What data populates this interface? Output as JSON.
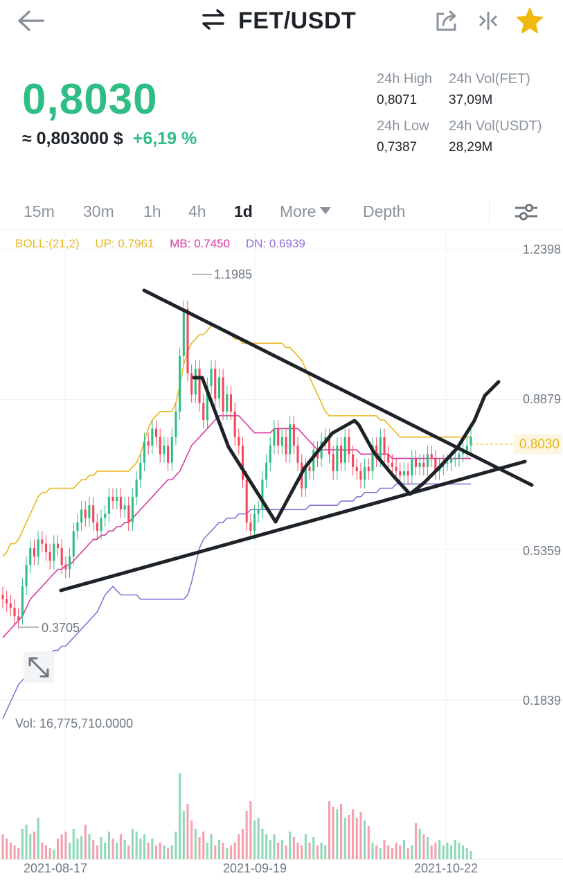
{
  "header": {
    "pair": "FET/USDT",
    "icons": [
      "back-arrow-icon",
      "swap-arrows-icon",
      "share-icon",
      "compare-icon",
      "star-icon"
    ]
  },
  "price": {
    "last": "0,8030",
    "usd_approx": "≈ 0,803000 $",
    "change_pct": "+6,19 %"
  },
  "stats": {
    "high_label": "24h High",
    "high_value": "0,8071",
    "vol_base_label": "24h Vol(FET)",
    "vol_base_value": "37,09M",
    "low_label": "24h Low",
    "low_value": "0,7387",
    "vol_quote_label": "24h Vol(USDT)",
    "vol_quote_value": "28,29M"
  },
  "tabs": [
    {
      "label": "15m"
    },
    {
      "label": "30m"
    },
    {
      "label": "1h"
    },
    {
      "label": "4h"
    },
    {
      "label": "1d",
      "active": true
    },
    {
      "label": "More"
    },
    {
      "label": "Depth"
    }
  ],
  "indicator": {
    "name": "BOLL:(21,2)",
    "up": "UP: 0.7961",
    "mb": "MB: 0.7450",
    "dn": "DN: 0.6939"
  },
  "colors": {
    "up": "#2ebd85",
    "down": "#f6465d",
    "boll_up": "#e7b61e",
    "boll_mb": "#d6399f",
    "boll_dn": "#8e6fd4",
    "drawing": "#1e2329"
  },
  "chart_data": {
    "type": "candlestick",
    "title": "",
    "xlabel": "",
    "ylabel": "",
    "y_ticks": [
      "1.2398",
      "0.8879",
      "0.5359",
      "0.1839"
    ],
    "ylim": [
      0.1839,
      1.2398
    ],
    "x_ticks": [
      "2021-08-17",
      "2021-09-19",
      "2021-10-22"
    ],
    "current_price_label": "0.8030",
    "high_marker": "1.1985",
    "low_marker": "0.3705",
    "volume_label": "Vol: 16,775,710.0000",
    "grid": true,
    "closes": [
      0.42,
      0.41,
      0.4,
      0.38,
      0.37,
      0.45,
      0.5,
      0.54,
      0.52,
      0.56,
      0.55,
      0.53,
      0.51,
      0.55,
      0.54,
      0.5,
      0.49,
      0.52,
      0.58,
      0.6,
      0.63,
      0.61,
      0.64,
      0.6,
      0.58,
      0.61,
      0.62,
      0.66,
      0.65,
      0.66,
      0.63,
      0.64,
      0.6,
      0.66,
      0.7,
      0.74,
      0.79,
      0.78,
      0.82,
      0.8,
      0.76,
      0.78,
      0.74,
      0.8,
      0.86,
      0.99,
      1.1,
      0.95,
      0.9,
      0.96,
      0.88,
      0.84,
      0.92,
      0.96,
      0.89,
      0.94,
      0.86,
      0.9,
      0.86,
      0.8,
      0.78,
      0.7,
      0.6,
      0.58,
      0.62,
      0.63,
      0.7,
      0.74,
      0.78,
      0.82,
      0.78,
      0.8,
      0.76,
      0.83,
      0.78,
      0.74,
      0.68,
      0.73,
      0.72,
      0.77,
      0.75,
      0.79,
      0.8,
      0.76,
      0.72,
      0.78,
      0.74,
      0.8,
      0.76,
      0.73,
      0.72,
      0.7,
      0.73,
      0.72,
      0.78,
      0.75,
      0.8,
      0.76,
      0.74,
      0.73,
      0.72,
      0.71,
      0.72,
      0.71,
      0.75,
      0.73,
      0.74,
      0.73,
      0.76,
      0.75,
      0.72,
      0.73,
      0.74,
      0.74,
      0.75,
      0.75,
      0.76,
      0.77,
      0.78,
      0.8
    ],
    "opens": [
      0.43,
      0.42,
      0.41,
      0.4,
      0.38,
      0.38,
      0.45,
      0.5,
      0.54,
      0.52,
      0.56,
      0.55,
      0.53,
      0.51,
      0.55,
      0.54,
      0.5,
      0.49,
      0.52,
      0.58,
      0.6,
      0.63,
      0.61,
      0.64,
      0.6,
      0.58,
      0.61,
      0.62,
      0.66,
      0.65,
      0.66,
      0.63,
      0.64,
      0.6,
      0.66,
      0.7,
      0.74,
      0.79,
      0.78,
      0.82,
      0.8,
      0.76,
      0.78,
      0.74,
      0.8,
      0.86,
      0.99,
      1.1,
      0.95,
      0.9,
      0.96,
      0.88,
      0.84,
      0.92,
      0.96,
      0.89,
      0.94,
      0.86,
      0.9,
      0.86,
      0.8,
      0.78,
      0.7,
      0.6,
      0.58,
      0.62,
      0.63,
      0.7,
      0.74,
      0.78,
      0.82,
      0.78,
      0.8,
      0.76,
      0.83,
      0.78,
      0.74,
      0.68,
      0.73,
      0.72,
      0.77,
      0.75,
      0.79,
      0.8,
      0.76,
      0.72,
      0.78,
      0.74,
      0.8,
      0.76,
      0.73,
      0.72,
      0.7,
      0.73,
      0.72,
      0.78,
      0.75,
      0.8,
      0.76,
      0.74,
      0.73,
      0.72,
      0.71,
      0.72,
      0.71,
      0.75,
      0.73,
      0.74,
      0.73,
      0.76,
      0.75,
      0.72,
      0.73,
      0.74,
      0.74,
      0.75,
      0.75,
      0.76,
      0.77,
      0.78
    ],
    "boll_up": [
      0.52,
      0.53,
      0.55,
      0.55,
      0.56,
      0.58,
      0.6,
      0.62,
      0.64,
      0.66,
      0.67,
      0.67,
      0.68,
      0.68,
      0.68,
      0.68,
      0.68,
      0.68,
      0.68,
      0.69,
      0.7,
      0.7,
      0.71,
      0.71,
      0.72,
      0.72,
      0.72,
      0.72,
      0.72,
      0.72,
      0.72,
      0.72,
      0.72,
      0.73,
      0.74,
      0.76,
      0.79,
      0.82,
      0.84,
      0.85,
      0.86,
      0.86,
      0.86,
      0.86,
      0.88,
      0.92,
      0.97,
      1.0,
      1.02,
      1.03,
      1.04,
      1.04,
      1.05,
      1.06,
      1.06,
      1.06,
      1.05,
      1.05,
      1.04,
      1.03,
      1.03,
      1.02,
      1.02,
      1.02,
      1.02,
      1.02,
      1.02,
      1.02,
      1.02,
      1.02,
      1.02,
      1.02,
      1.01,
      1.01,
      1.0,
      0.99,
      0.98,
      0.96,
      0.94,
      0.92,
      0.9,
      0.88,
      0.86,
      0.85,
      0.85,
      0.85,
      0.85,
      0.85,
      0.85,
      0.85,
      0.85,
      0.85,
      0.85,
      0.85,
      0.85,
      0.85,
      0.84,
      0.84,
      0.83,
      0.82,
      0.81,
      0.8,
      0.8,
      0.8,
      0.8,
      0.8,
      0.8,
      0.8,
      0.8,
      0.8,
      0.8,
      0.8,
      0.8,
      0.8,
      0.8,
      0.8,
      0.8,
      0.8,
      0.8,
      0.8
    ],
    "boll_mb": [
      0.33,
      0.34,
      0.35,
      0.36,
      0.37,
      0.38,
      0.4,
      0.42,
      0.43,
      0.44,
      0.45,
      0.46,
      0.47,
      0.48,
      0.49,
      0.49,
      0.5,
      0.5,
      0.51,
      0.52,
      0.53,
      0.54,
      0.55,
      0.56,
      0.56,
      0.57,
      0.57,
      0.58,
      0.58,
      0.59,
      0.59,
      0.6,
      0.6,
      0.61,
      0.62,
      0.63,
      0.64,
      0.65,
      0.66,
      0.67,
      0.68,
      0.69,
      0.7,
      0.7,
      0.71,
      0.72,
      0.74,
      0.76,
      0.78,
      0.79,
      0.8,
      0.81,
      0.82,
      0.83,
      0.84,
      0.85,
      0.85,
      0.85,
      0.85,
      0.85,
      0.85,
      0.84,
      0.83,
      0.82,
      0.81,
      0.81,
      0.81,
      0.81,
      0.81,
      0.82,
      0.82,
      0.82,
      0.82,
      0.82,
      0.82,
      0.82,
      0.81,
      0.8,
      0.79,
      0.78,
      0.77,
      0.77,
      0.77,
      0.77,
      0.77,
      0.77,
      0.77,
      0.77,
      0.77,
      0.77,
      0.77,
      0.76,
      0.76,
      0.76,
      0.76,
      0.76,
      0.76,
      0.76,
      0.76,
      0.75,
      0.75,
      0.75,
      0.75,
      0.75,
      0.75,
      0.75,
      0.75,
      0.75,
      0.75,
      0.75,
      0.75,
      0.75,
      0.75,
      0.75,
      0.75,
      0.75,
      0.75,
      0.75,
      0.75,
      0.75
    ],
    "boll_dn": [
      0.14,
      0.16,
      0.18,
      0.2,
      0.22,
      0.23,
      0.24,
      0.25,
      0.26,
      0.27,
      0.28,
      0.29,
      0.29,
      0.3,
      0.3,
      0.31,
      0.31,
      0.32,
      0.33,
      0.34,
      0.35,
      0.36,
      0.37,
      0.38,
      0.39,
      0.41,
      0.43,
      0.44,
      0.45,
      0.44,
      0.43,
      0.43,
      0.43,
      0.43,
      0.43,
      0.42,
      0.42,
      0.42,
      0.42,
      0.42,
      0.42,
      0.42,
      0.42,
      0.42,
      0.42,
      0.42,
      0.42,
      0.43,
      0.46,
      0.5,
      0.54,
      0.56,
      0.57,
      0.58,
      0.59,
      0.6,
      0.6,
      0.61,
      0.61,
      0.61,
      0.62,
      0.62,
      0.62,
      0.63,
      0.63,
      0.63,
      0.63,
      0.63,
      0.63,
      0.63,
      0.63,
      0.63,
      0.63,
      0.63,
      0.63,
      0.63,
      0.63,
      0.63,
      0.64,
      0.64,
      0.64,
      0.64,
      0.64,
      0.64,
      0.64,
      0.64,
      0.65,
      0.65,
      0.65,
      0.65,
      0.66,
      0.66,
      0.67,
      0.67,
      0.67,
      0.67,
      0.68,
      0.68,
      0.68,
      0.68,
      0.69,
      0.69,
      0.69,
      0.69,
      0.69,
      0.69,
      0.69,
      0.69,
      0.69,
      0.69,
      0.69,
      0.69,
      0.69,
      0.69,
      0.69,
      0.69,
      0.69,
      0.69,
      0.69,
      0.69
    ],
    "volumes": [
      0.18,
      0.15,
      0.12,
      0.1,
      0.08,
      0.22,
      0.25,
      0.18,
      0.2,
      0.3,
      0.12,
      0.1,
      0.08,
      0.07,
      0.15,
      0.18,
      0.2,
      0.12,
      0.22,
      0.15,
      0.17,
      0.25,
      0.18,
      0.14,
      0.1,
      0.16,
      0.12,
      0.2,
      0.15,
      0.12,
      0.18,
      0.14,
      0.1,
      0.22,
      0.2,
      0.15,
      0.18,
      0.12,
      0.15,
      0.1,
      0.12,
      0.1,
      0.08,
      0.1,
      0.2,
      0.62,
      0.35,
      0.4,
      0.28,
      0.22,
      0.16,
      0.2,
      0.12,
      0.18,
      0.1,
      0.14,
      0.12,
      0.08,
      0.1,
      0.12,
      0.18,
      0.22,
      0.35,
      0.42,
      0.28,
      0.3,
      0.22,
      0.18,
      0.14,
      0.18,
      0.12,
      0.14,
      0.1,
      0.2,
      0.16,
      0.12,
      0.1,
      0.18,
      0.12,
      0.16,
      0.1,
      0.12,
      0.1,
      0.42,
      0.38,
      0.36,
      0.4,
      0.3,
      0.32,
      0.36,
      0.3,
      0.34,
      0.28,
      0.24,
      0.12,
      0.1,
      0.08,
      0.14,
      0.1,
      0.08,
      0.12,
      0.1,
      0.14,
      0.08,
      0.1,
      0.26,
      0.22,
      0.18,
      0.16,
      0.1,
      0.12,
      0.14,
      0.1,
      0.12,
      0.1,
      0.14,
      0.12,
      0.1,
      0.08,
      0.06
    ]
  }
}
